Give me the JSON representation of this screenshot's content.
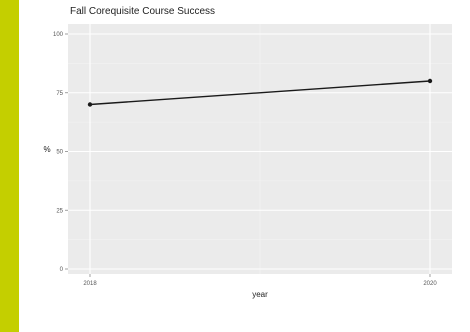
{
  "colors": {
    "accent_bar": "#c4cf00",
    "panel_background": "#ebebeb",
    "grid_major": "#ffffff",
    "line": "#1a1a1a"
  },
  "chart_data": {
    "type": "line",
    "title": "Fall Corequisite Course Success",
    "xlabel": "year",
    "ylabel": "%",
    "x_ticks": [
      "2018",
      "2020"
    ],
    "x": [
      2018,
      2020
    ],
    "y_ticks": [
      "0",
      "25",
      "50",
      "75",
      "100"
    ],
    "ylim": [
      0,
      100
    ],
    "series": [
      {
        "values": [
          70,
          80
        ]
      }
    ],
    "grid": true,
    "legend": "none"
  }
}
